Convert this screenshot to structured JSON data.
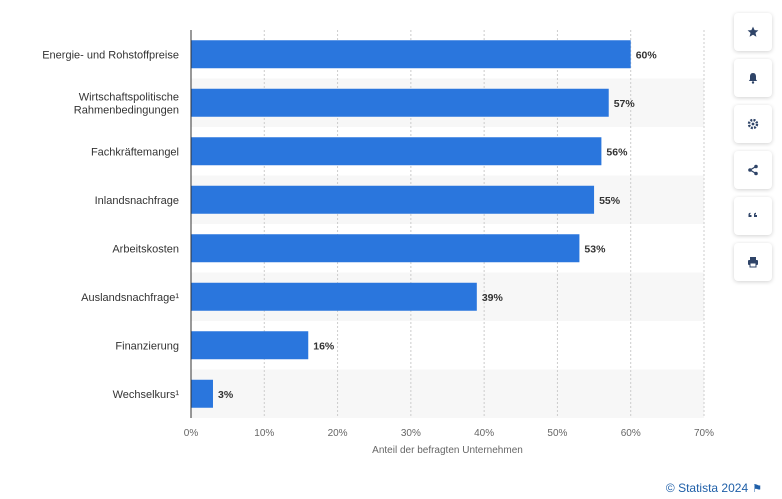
{
  "chart_data": {
    "type": "bar",
    "orientation": "horizontal",
    "categories": [
      "Energie- und Rohstoffpreise",
      "Wirtschaftspolitische Rahmenbedingungen",
      "Fachkräftemangel",
      "Inlandsnachfrage",
      "Arbeitskosten",
      "Auslandsnachfrage¹",
      "Finanzierung",
      "Wechselkurs¹"
    ],
    "category_lines": [
      [
        "Energie- und Rohstoffpreise"
      ],
      [
        "Wirtschaftspolitische",
        "Rahmenbedingungen"
      ],
      [
        "Fachkräftemangel"
      ],
      [
        "Inlandsnachfrage"
      ],
      [
        "Arbeitskosten"
      ],
      [
        "Auslandsnachfrage¹"
      ],
      [
        "Finanzierung"
      ],
      [
        "Wechselkurs¹"
      ]
    ],
    "values": [
      60,
      57,
      56,
      55,
      53,
      39,
      16,
      3
    ],
    "value_labels": [
      "60%",
      "57%",
      "56%",
      "55%",
      "53%",
      "39%",
      "16%",
      "3%"
    ],
    "xlabel": "Anteil der befragten Unternehmen",
    "xlim": [
      0,
      70
    ],
    "xticks": [
      0,
      10,
      20,
      30,
      40,
      50,
      60,
      70
    ],
    "xtick_labels": [
      "0%",
      "10%",
      "20%",
      "30%",
      "40%",
      "50%",
      "60%",
      "70%"
    ],
    "bar_color": "#2a76dd",
    "grid": true,
    "alternating_row_shading": true
  },
  "toolbar": [
    {
      "icon": "star-icon"
    },
    {
      "icon": "bell-icon"
    },
    {
      "icon": "gear-icon"
    },
    {
      "icon": "share-icon"
    },
    {
      "icon": "quote-icon"
    },
    {
      "icon": "print-icon"
    }
  ],
  "credit": {
    "text": "© Statista 2024",
    "flag": "⚑"
  }
}
